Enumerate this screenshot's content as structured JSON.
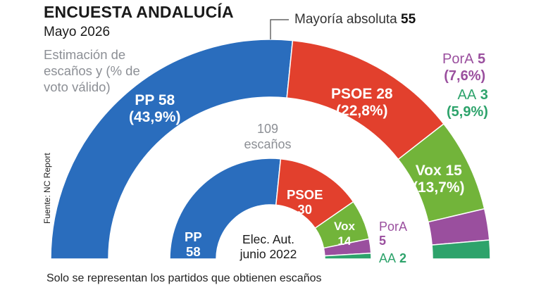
{
  "title": "ENCUESTA ANDALUCÍA",
  "subtitle": "Mayo 2026",
  "legend_note": "Estimación de escaños y (% de voto válido)",
  "majority": {
    "label": "Mayoría absoluta",
    "value": "55"
  },
  "total": "109 escaños",
  "source": "Fuente: NC Report",
  "center_label": "Elec. Aut. junio 2022",
  "footnote": "Solo se representan los partidos que obtienen escaños",
  "colors": {
    "PP": "#2a6dbd",
    "PSOE": "#e2402d",
    "Vox": "#72b43a",
    "PorA": "#9a4f9e",
    "AA": "#2da36b"
  },
  "labels": {
    "pp_2026_name": "PP 58",
    "pp_2026_pct": "(43,9%)",
    "psoe_2026_name": "PSOE 28",
    "psoe_2026_pct": "(22,8%)",
    "vox_2026_name": "Vox 15",
    "vox_2026_pct": "(13,7%)",
    "pora_2026_name": "PorA",
    "pora_2026_seats": "5",
    "pora_2026_pct": "(7,6%)",
    "aa_2026_name": "AA",
    "aa_2026_seats": "3",
    "aa_2026_pct": "(5,9%)",
    "pp_2022_name": "PP",
    "pp_2022_seats": "58",
    "psoe_2022_name": "PSOE",
    "psoe_2022_seats": "30",
    "vox_2022_name": "Vox",
    "vox_2022_seats": "14",
    "pora_2022_name": "PorA",
    "pora_2022_seats": "5",
    "aa_2022_name": "AA",
    "aa_2022_seats": "2"
  },
  "chart_data": [
    {
      "type": "parliament-semicircle",
      "title": "ENCUESTA ANDALUCÍA",
      "subtitle": "Mayo 2026",
      "total_seats": 109,
      "majority": 55,
      "parties": [
        {
          "name": "PP",
          "seats": 58,
          "vote_pct": 43.9
        },
        {
          "name": "PSOE",
          "seats": 28,
          "vote_pct": 22.8
        },
        {
          "name": "Vox",
          "seats": 15,
          "vote_pct": 13.7
        },
        {
          "name": "PorA",
          "seats": 5,
          "vote_pct": 7.6
        },
        {
          "name": "AA",
          "seats": 3,
          "vote_pct": 5.9
        }
      ]
    },
    {
      "type": "parliament-semicircle",
      "title": "Elec. Aut. junio 2022",
      "total_seats": 109,
      "parties": [
        {
          "name": "PP",
          "seats": 58
        },
        {
          "name": "PSOE",
          "seats": 30
        },
        {
          "name": "Vox",
          "seats": 14
        },
        {
          "name": "PorA",
          "seats": 5
        },
        {
          "name": "AA",
          "seats": 2
        }
      ]
    }
  ]
}
